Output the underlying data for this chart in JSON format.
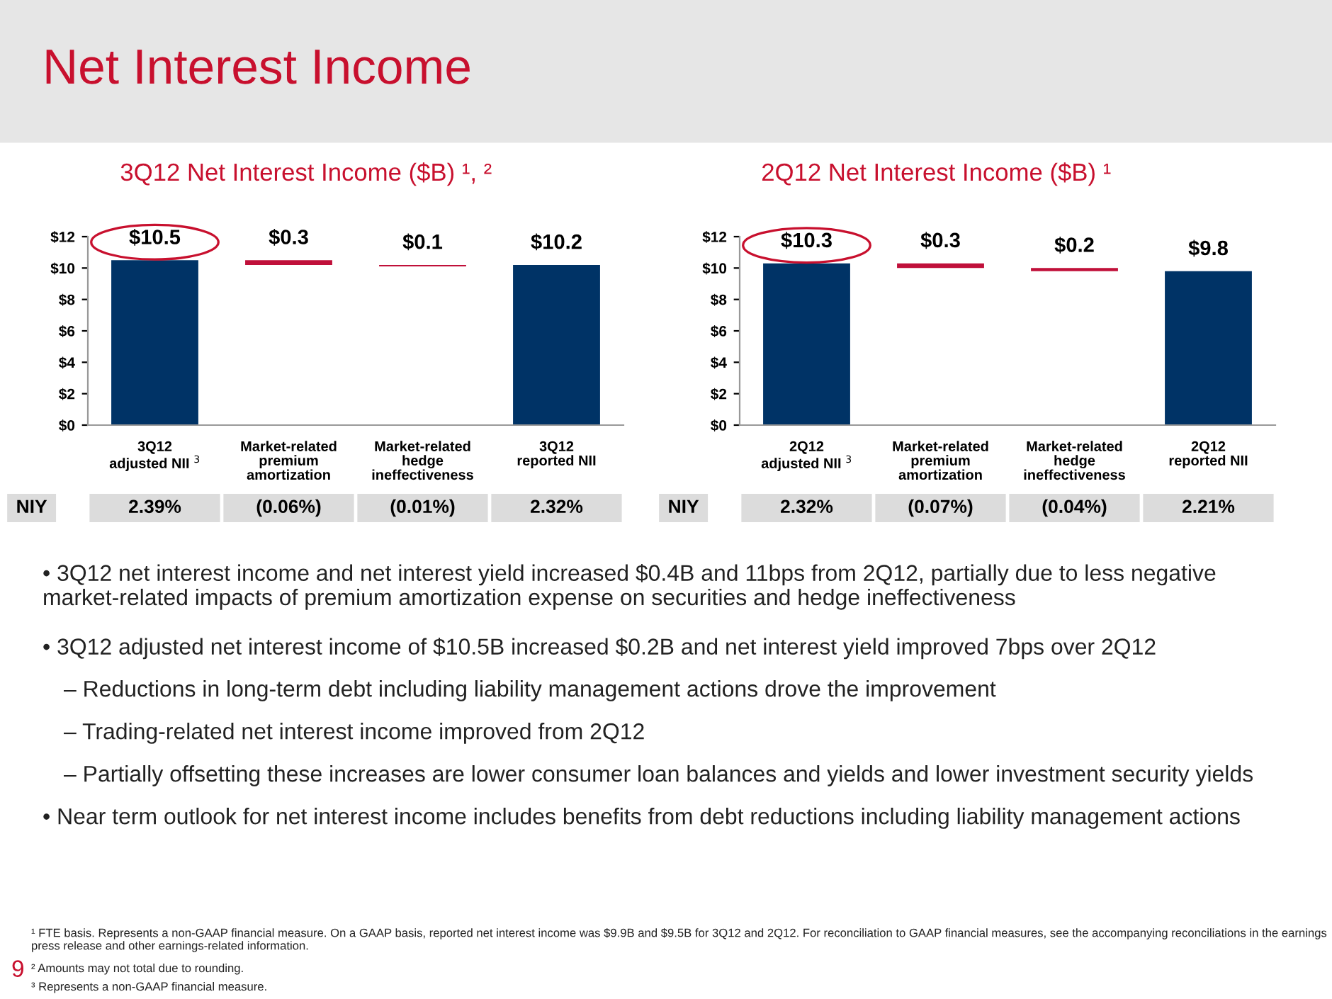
{
  "chart_data": [
    {
      "type": "other",
      "title": "Net Interest Income",
      "annotations": [
        "• 3Q12 net interest income and net interest yield increased $0.4B and 11bps from 2Q12, partially due to less negative market-related impacts of premium amortization expense on securities and hedge ineffectiveness",
        "• 3Q12 adjusted net interest income of $10.5B increased $0.2B and net interest yield improved 7bps over 2Q12",
        "– Reductions in long-term debt including liability management actions drove the improvement",
        "– Trading-related net interest income improved from 2Q12",
        "– Partially offsetting these increases are lower consumer loan balances and yields and lower investment security yields",
        "• Near term outlook for net interest income includes benefits from debt reductions including liability management actions",
        "¹ FTE basis. Represents a non-GAAP financial measure. On a GAAP basis, reported net interest income was $9.9B and $9.5B for 3Q12 and 2Q12. For reconciliation to GAAP financial measures, see the accompanying reconciliations in the earnings press release and other earnings-related information.",
        "² Amounts may not total due to rounding.",
        "³ Represents a non-GAAP financial measure.",
        "9"
      ]
    },
    {
      "type": "bar",
      "title": "3Q12 Net Interest Income ($B) ¹, ²",
      "categories": [
        "3Q12\nadjusted NII $^{3}$",
        "Market-related\npremium\namortization",
        "Market-related\nhedge\nineffectiveness",
        "3Q12\nreported NII"
      ],
      "values": [
        10.5,
        0.3,
        0.1,
        10.2
      ],
      "base": [
        0,
        10.2,
        10.1,
        0
      ],
      "colors": [
        "#003366",
        "#c0103a",
        "#c0103a",
        "#003366"
      ],
      "value_labels": [
        "$10.5",
        "$0.3",
        "$0.1",
        "$10.2"
      ],
      "ylim": [
        0,
        12
      ],
      "yticks": [
        {
          "value": 0,
          "label": "$0"
        },
        {
          "value": 2,
          "label": "$2"
        },
        {
          "value": 4,
          "label": "$4"
        },
        {
          "value": 6,
          "label": "$6"
        },
        {
          "value": 8,
          "label": "$8"
        },
        {
          "value": 10,
          "label": "$10"
        },
        {
          "value": 12,
          "label": "$12"
        }
      ],
      "annotations": [
        "NIY",
        "2.39%",
        "(0.06%)",
        "(0.01%)",
        "2.32%"
      ]
    },
    {
      "type": "bar",
      "title": "2Q12 Net Interest Income ($B) ¹",
      "categories": [
        "2Q12\nadjusted NII $^{3}$",
        "Market-related\npremium\namortization",
        "Market-related\nhedge\nineffectiveness",
        "2Q12\nreported NII"
      ],
      "values": [
        10.3,
        0.3,
        0.2,
        9.8
      ],
      "base": [
        0,
        10.0,
        9.8,
        0
      ],
      "colors": [
        "#003366",
        "#c0103a",
        "#c0103a",
        "#003366"
      ],
      "value_labels": [
        "$10.3",
        "$0.3",
        "$0.2",
        "$9.8"
      ],
      "ylim": [
        0,
        12
      ],
      "yticks": [
        {
          "value": 0,
          "label": "$0"
        },
        {
          "value": 2,
          "label": "$2"
        },
        {
          "value": 4,
          "label": "$4"
        },
        {
          "value": 6,
          "label": "$6"
        },
        {
          "value": 8,
          "label": "$8"
        },
        {
          "value": 10,
          "label": "$10"
        },
        {
          "value": 12,
          "label": "$12"
        }
      ],
      "annotations": [
        "NIY",
        "2.32%",
        "(0.07%)",
        "(0.04%)",
        "2.21%"
      ]
    }
  ]
}
